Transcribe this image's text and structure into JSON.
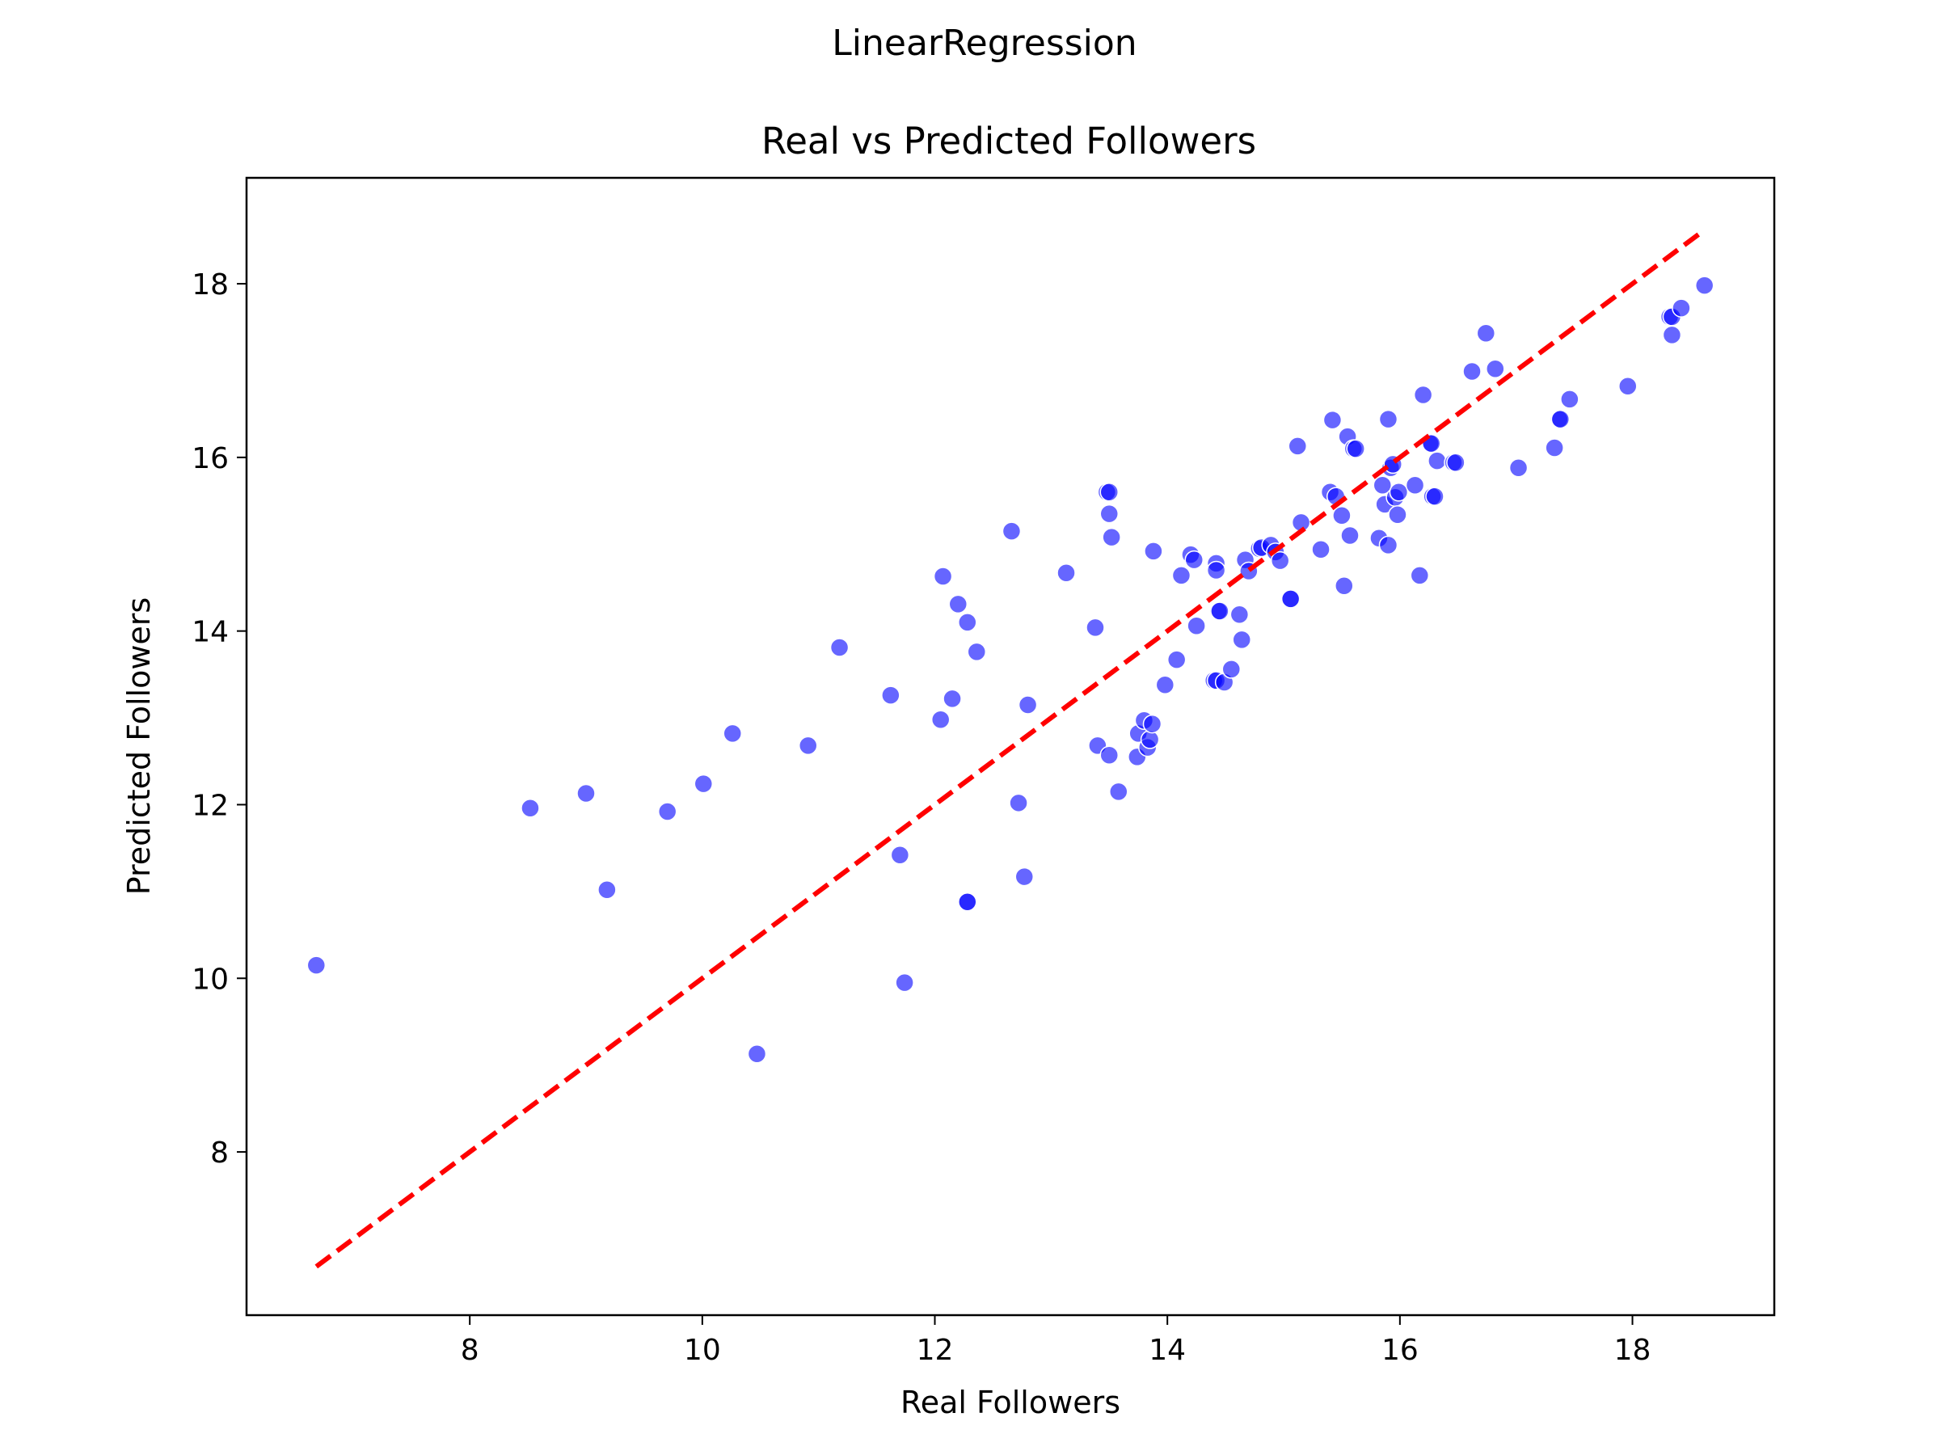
{
  "chart_data": {
    "type": "scatter",
    "suptitle": "LinearRegression",
    "title": "Real vs Predicted Followers",
    "xlabel": "Real Followers",
    "ylabel": "Predicted Followers",
    "xlim": [
      6.08,
      19.22
    ],
    "ylim": [
      6.12,
      19.22
    ],
    "xticks": [
      8,
      10,
      12,
      14,
      16,
      18
    ],
    "yticks": [
      8,
      10,
      12,
      14,
      16,
      18
    ],
    "grid": false,
    "colors": {
      "points": "#0000ff",
      "line": "#ff0000",
      "point_edge": "#ffffff"
    },
    "reference_line": {
      "style": "dashed",
      "x": [
        6.68,
        18.62
      ],
      "y": [
        6.68,
        18.62
      ]
    },
    "points": [
      [
        6.68,
        10.15
      ],
      [
        8.52,
        11.96
      ],
      [
        9.0,
        12.13
      ],
      [
        9.18,
        11.02
      ],
      [
        9.7,
        11.92
      ],
      [
        10.01,
        12.24
      ],
      [
        10.26,
        12.82
      ],
      [
        10.47,
        9.13
      ],
      [
        10.91,
        12.68
      ],
      [
        11.18,
        13.81
      ],
      [
        11.62,
        13.26
      ],
      [
        11.7,
        11.42
      ],
      [
        11.74,
        9.95
      ],
      [
        12.05,
        12.98
      ],
      [
        12.07,
        14.63
      ],
      [
        12.15,
        13.22
      ],
      [
        12.2,
        14.31
      ],
      [
        12.28,
        14.1
      ],
      [
        12.28,
        10.88
      ],
      [
        12.28,
        10.88
      ],
      [
        12.36,
        13.76
      ],
      [
        12.66,
        15.15
      ],
      [
        12.72,
        12.02
      ],
      [
        12.77,
        11.17
      ],
      [
        12.8,
        13.15
      ],
      [
        13.13,
        14.67
      ],
      [
        13.38,
        14.04
      ],
      [
        13.4,
        12.68
      ],
      [
        13.48,
        15.6
      ],
      [
        13.5,
        15.6
      ],
      [
        13.5,
        15.35
      ],
      [
        13.5,
        12.57
      ],
      [
        13.52,
        15.08
      ],
      [
        13.58,
        12.15
      ],
      [
        13.74,
        12.55
      ],
      [
        13.75,
        12.82
      ],
      [
        13.8,
        12.97
      ],
      [
        13.83,
        12.66
      ],
      [
        13.85,
        12.75
      ],
      [
        13.87,
        12.93
      ],
      [
        13.88,
        14.92
      ],
      [
        13.98,
        13.38
      ],
      [
        14.08,
        13.67
      ],
      [
        14.12,
        14.64
      ],
      [
        14.2,
        14.88
      ],
      [
        14.23,
        14.82
      ],
      [
        14.25,
        14.06
      ],
      [
        14.4,
        13.43
      ],
      [
        14.42,
        13.43
      ],
      [
        14.42,
        14.78
      ],
      [
        14.42,
        14.7
      ],
      [
        14.44,
        14.23
      ],
      [
        14.45,
        14.23
      ],
      [
        14.49,
        13.41
      ],
      [
        14.55,
        13.56
      ],
      [
        14.62,
        14.19
      ],
      [
        14.64,
        13.9
      ],
      [
        14.67,
        14.82
      ],
      [
        14.7,
        14.69
      ],
      [
        14.79,
        14.95
      ],
      [
        14.81,
        14.96
      ],
      [
        14.89,
        14.99
      ],
      [
        14.93,
        14.91
      ],
      [
        14.97,
        14.81
      ],
      [
        15.06,
        14.37
      ],
      [
        15.06,
        14.37
      ],
      [
        15.12,
        16.13
      ],
      [
        15.15,
        15.25
      ],
      [
        15.32,
        14.94
      ],
      [
        15.4,
        15.6
      ],
      [
        15.42,
        16.43
      ],
      [
        15.45,
        15.55
      ],
      [
        15.5,
        15.33
      ],
      [
        15.52,
        14.52
      ],
      [
        15.55,
        16.24
      ],
      [
        15.57,
        15.1
      ],
      [
        15.6,
        16.1
      ],
      [
        15.62,
        16.1
      ],
      [
        15.82,
        15.07
      ],
      [
        15.85,
        15.68
      ],
      [
        15.87,
        15.46
      ],
      [
        15.9,
        16.44
      ],
      [
        15.9,
        14.99
      ],
      [
        15.92,
        15.88
      ],
      [
        15.94,
        15.92
      ],
      [
        15.96,
        15.54
      ],
      [
        15.98,
        15.34
      ],
      [
        15.99,
        15.6
      ],
      [
        16.13,
        15.68
      ],
      [
        16.17,
        14.64
      ],
      [
        16.2,
        16.72
      ],
      [
        16.26,
        16.16
      ],
      [
        16.27,
        16.16
      ],
      [
        16.28,
        15.55
      ],
      [
        16.3,
        15.55
      ],
      [
        16.32,
        15.96
      ],
      [
        16.46,
        15.94
      ],
      [
        16.48,
        15.94
      ],
      [
        16.62,
        16.99
      ],
      [
        16.74,
        17.43
      ],
      [
        16.82,
        17.02
      ],
      [
        17.02,
        15.88
      ],
      [
        17.33,
        16.11
      ],
      [
        17.37,
        16.44
      ],
      [
        17.38,
        16.44
      ],
      [
        17.46,
        16.67
      ],
      [
        17.96,
        16.82
      ],
      [
        18.32,
        17.62
      ],
      [
        18.34,
        17.62
      ],
      [
        18.34,
        17.41
      ],
      [
        18.42,
        17.72
      ],
      [
        18.62,
        17.98
      ]
    ]
  }
}
